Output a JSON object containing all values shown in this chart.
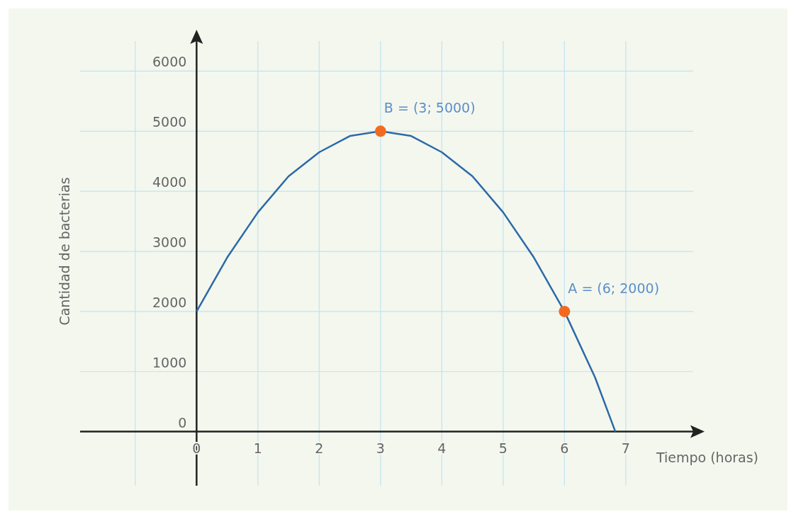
{
  "chart_data": {
    "type": "line",
    "xlabel": "Tiempo (horas)",
    "ylabel": "Cantidad de bacterias",
    "xlim": [
      -1.9,
      8.1
    ],
    "ylim": [
      -900,
      6500
    ],
    "xticks": [
      {
        "value": -1,
        "label": null
      },
      0,
      1,
      2,
      3,
      4,
      5,
      6,
      7
    ],
    "yticks": [
      0,
      1000,
      2000,
      3000,
      4000,
      5000,
      6000
    ],
    "grid": true,
    "series": [
      {
        "color": "#2b6aa8",
        "x": [
          0,
          0.5,
          1,
          1.5,
          2,
          2.5,
          3,
          3.5,
          4,
          4.5,
          5,
          5.5,
          6,
          6.5,
          6.83
        ],
        "values": [
          2000,
          2900,
          3650,
          4250,
          4650,
          4920,
          5000,
          4920,
          4650,
          4250,
          3650,
          2900,
          2000,
          900,
          0
        ]
      },
      {
        "type": "scatter",
        "color": "#f26a21",
        "marker": "circle",
        "x": [
          3,
          6
        ],
        "values": [
          5000,
          2000
        ]
      }
    ],
    "annotations": [
      {
        "text": "B = (3; 5000)",
        "x": 3,
        "y": 5000
      },
      {
        "text": "A = (6; 2000)",
        "x": 6,
        "y": 2000
      }
    ]
  }
}
